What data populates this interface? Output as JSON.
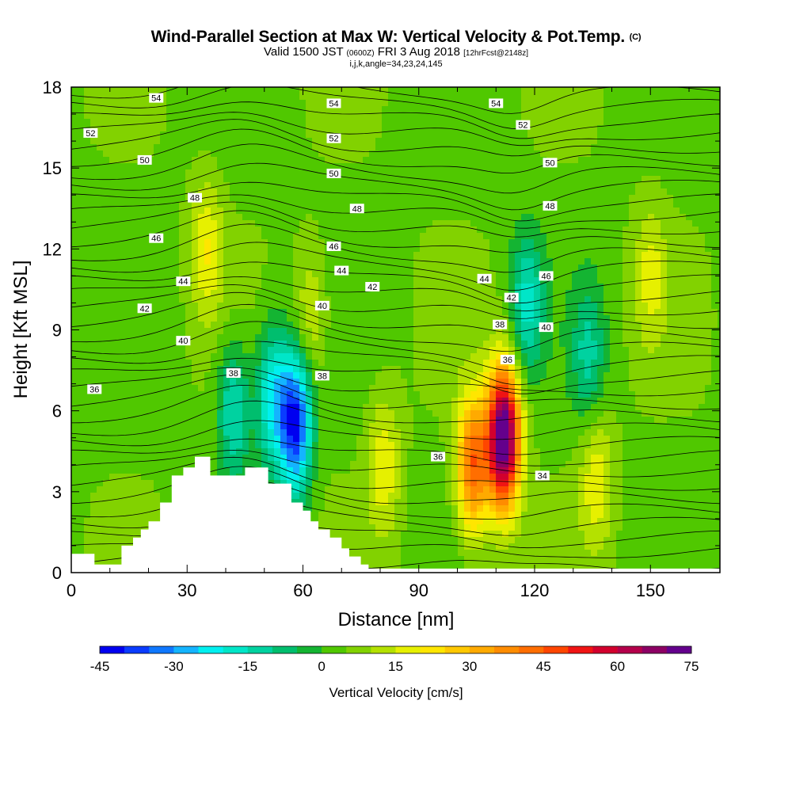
{
  "header": {
    "title_main": "Wind-Parallel Section at Max W: Vertical Velocity & Pot.Temp.",
    "title_copyright": "(C)",
    "valid_prefix": "Valid 1500 JST",
    "valid_zulu": "(0600Z)",
    "valid_date": "FRI 3 Aug 2018",
    "forecast_info": "[12hrFcst@2148z]",
    "section_info": "i,j,k,angle=34,23,24,145"
  },
  "chart_data": {
    "type": "heatmap",
    "title": "Wind-Parallel Section at Max W: Vertical Velocity & Pot.Temp.",
    "xlabel": "Distance [nm]",
    "ylabel": "Height [Kft MSL]",
    "xlim": [
      0,
      168
    ],
    "ylim": [
      0,
      18
    ],
    "x_ticks": [
      "0",
      "30",
      "60",
      "90",
      "120",
      "150"
    ],
    "x_tick_values": [
      0,
      30,
      60,
      90,
      120,
      150
    ],
    "y_ticks": [
      "0",
      "3",
      "6",
      "9",
      "12",
      "15",
      "18"
    ],
    "y_tick_values": [
      0,
      3,
      6,
      9,
      12,
      15,
      18
    ],
    "colorbar": {
      "title": "Vertical Velocity [cm/s]",
      "labels": [
        "-45",
        "-30",
        "-15",
        "0",
        "15",
        "30",
        "45",
        "60",
        "75"
      ],
      "label_values": [
        -45,
        -30,
        -15,
        0,
        15,
        30,
        45,
        60,
        75
      ],
      "min": -45,
      "max": 75,
      "step": 5,
      "colors": [
        "#0000f0",
        "#0a3cff",
        "#0f78ff",
        "#14b4ff",
        "#00f0f0",
        "#00e6c8",
        "#00d2a0",
        "#00be6e",
        "#14b432",
        "#50c800",
        "#82d200",
        "#b4e100",
        "#e6f000",
        "#ffe600",
        "#ffc800",
        "#ffaa00",
        "#ff8c00",
        "#ff6e00",
        "#ff4600",
        "#f01414",
        "#d2002d",
        "#b4004b",
        "#8c0064",
        "#64008c"
      ]
    },
    "vertical_velocity_cells_cm_s": {
      "x_nm": [
        0,
        8,
        16,
        24,
        32,
        38,
        44,
        50,
        54,
        58,
        62,
        66,
        70,
        76,
        80,
        84,
        90,
        96,
        100,
        104,
        108,
        112,
        116,
        120,
        126,
        132,
        136,
        140,
        146,
        152,
        160,
        168
      ],
      "z_kft": [
        0,
        1.5,
        3,
        4.5,
        6,
        7.5,
        9,
        10.5,
        12,
        13.5,
        15,
        16.5,
        18
      ],
      "features": [
        {
          "x": 112,
          "z": 5,
          "w": 75
        },
        {
          "x": 104,
          "z": 4,
          "w": 40
        },
        {
          "x": 81,
          "z": 4,
          "w": 15
        },
        {
          "x": 58,
          "z": 5.5,
          "w": -45
        },
        {
          "x": 52,
          "z": 6.5,
          "w": -25
        },
        {
          "x": 42,
          "z": 6,
          "w": -20
        },
        {
          "x": 35,
          "z": 12,
          "w": 15
        },
        {
          "x": 62,
          "z": 9.5,
          "w": 12
        },
        {
          "x": 118,
          "z": 10,
          "w": -20
        },
        {
          "x": 134,
          "z": 8,
          "w": -15
        },
        {
          "x": 136,
          "z": 3.5,
          "w": 15
        },
        {
          "x": 150,
          "z": 11,
          "w": 12
        }
      ]
    },
    "potential_temperature_contours": {
      "units": "F",
      "levels": [
        34,
        36,
        38,
        40,
        42,
        44,
        46,
        48,
        50,
        52,
        54
      ],
      "labels": [
        {
          "text": "54",
          "x": 22,
          "z": 17.6
        },
        {
          "text": "54",
          "x": 68,
          "z": 17.4
        },
        {
          "text": "54",
          "x": 110,
          "z": 17.4
        },
        {
          "text": "52",
          "x": 5,
          "z": 16.3
        },
        {
          "text": "52",
          "x": 68,
          "z": 16.1
        },
        {
          "text": "52",
          "x": 117,
          "z": 16.6
        },
        {
          "text": "50",
          "x": 19,
          "z": 15.3
        },
        {
          "text": "50",
          "x": 68,
          "z": 14.8
        },
        {
          "text": "50",
          "x": 124,
          "z": 15.2
        },
        {
          "text": "48",
          "x": 32,
          "z": 13.9
        },
        {
          "text": "48",
          "x": 74,
          "z": 13.5
        },
        {
          "text": "48",
          "x": 124,
          "z": 13.6
        },
        {
          "text": "46",
          "x": 22,
          "z": 12.4
        },
        {
          "text": "46",
          "x": 68,
          "z": 12.1
        },
        {
          "text": "46",
          "x": 123,
          "z": 11.0
        },
        {
          "text": "44",
          "x": 29,
          "z": 10.8
        },
        {
          "text": "44",
          "x": 70,
          "z": 11.2
        },
        {
          "text": "44",
          "x": 107,
          "z": 10.9
        },
        {
          "text": "42",
          "x": 19,
          "z": 9.8
        },
        {
          "text": "42",
          "x": 78,
          "z": 10.6
        },
        {
          "text": "42",
          "x": 114,
          "z": 10.2
        },
        {
          "text": "40",
          "x": 29,
          "z": 8.6
        },
        {
          "text": "40",
          "x": 65,
          "z": 9.9
        },
        {
          "text": "40",
          "x": 123,
          "z": 9.1
        },
        {
          "text": "38",
          "x": 42,
          "z": 7.4
        },
        {
          "text": "38",
          "x": 65,
          "z": 7.3
        },
        {
          "text": "38",
          "x": 111,
          "z": 9.2
        },
        {
          "text": "36",
          "x": 6,
          "z": 6.8
        },
        {
          "text": "36",
          "x": 113,
          "z": 7.9
        },
        {
          "text": "36",
          "x": 95,
          "z": 4.3
        },
        {
          "text": "34",
          "x": 122,
          "z": 3.6
        }
      ]
    },
    "terrain_kft": {
      "x_nm": [
        0,
        6,
        6,
        13,
        13,
        16,
        16,
        18,
        18,
        20,
        20,
        23,
        23,
        26,
        26,
        29,
        29,
        32,
        32,
        36,
        36,
        45,
        45,
        51,
        51,
        57,
        57,
        60,
        60,
        62,
        62,
        64,
        64,
        67,
        67,
        70,
        70,
        72,
        72,
        75,
        75,
        77,
        77,
        78
      ],
      "z_kft": [
        0.7,
        0.7,
        0.3,
        0.3,
        1.0,
        1.0,
        1.3,
        1.3,
        1.6,
        1.6,
        1.9,
        1.9,
        2.6,
        2.6,
        3.6,
        3.6,
        3.9,
        3.9,
        4.3,
        4.3,
        3.6,
        3.6,
        3.9,
        3.9,
        3.3,
        3.3,
        2.6,
        2.6,
        2.3,
        2.3,
        1.9,
        1.9,
        1.6,
        1.6,
        1.3,
        1.3,
        0.9,
        0.9,
        0.6,
        0.6,
        0.3,
        0.3,
        0.0,
        0.0
      ]
    }
  }
}
